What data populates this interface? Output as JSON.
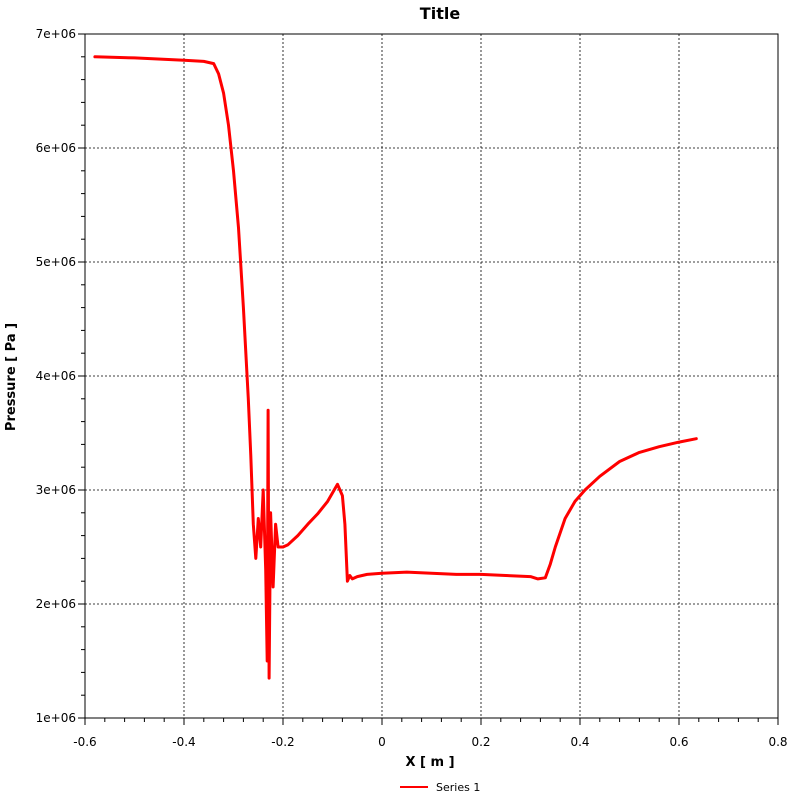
{
  "chart_data": {
    "type": "line",
    "title": "Title",
    "xlabel": "X [ m ]",
    "ylabel": "Pressure [ Pa ]",
    "xlim": [
      -0.6,
      0.8
    ],
    "ylim": [
      1000000,
      7000000
    ],
    "x_ticks": [
      -0.6,
      -0.4,
      -0.2,
      0,
      0.2,
      0.4,
      0.6,
      0.8
    ],
    "x_tick_labels": [
      "-0.6",
      "-0.4",
      "-0.2",
      "0",
      "0.2",
      "0.4",
      "0.6",
      "0.8"
    ],
    "y_ticks": [
      1000000,
      2000000,
      3000000,
      4000000,
      5000000,
      6000000,
      7000000
    ],
    "y_tick_labels": [
      "1e+06",
      "2e+06",
      "3e+06",
      "4e+06",
      "5e+06",
      "6e+06",
      "7e+06"
    ],
    "grid": true,
    "legend_position": "bottom-center",
    "series": [
      {
        "name": "Series 1",
        "color": "#ff0000",
        "x": [
          -0.58,
          -0.5,
          -0.4,
          -0.36,
          -0.34,
          -0.33,
          -0.32,
          -0.31,
          -0.3,
          -0.29,
          -0.28,
          -0.27,
          -0.265,
          -0.26,
          -0.255,
          -0.25,
          -0.245,
          -0.24,
          -0.235,
          -0.232,
          -0.23,
          -0.228,
          -0.225,
          -0.22,
          -0.215,
          -0.21,
          -0.2,
          -0.19,
          -0.17,
          -0.15,
          -0.13,
          -0.11,
          -0.09,
          -0.08,
          -0.075,
          -0.07,
          -0.065,
          -0.06,
          -0.05,
          -0.03,
          0.0,
          0.05,
          0.1,
          0.15,
          0.2,
          0.25,
          0.3,
          0.315,
          0.33,
          0.34,
          0.35,
          0.37,
          0.39,
          0.41,
          0.44,
          0.48,
          0.52,
          0.56,
          0.6,
          0.635
        ],
        "y": [
          6800000,
          6790000,
          6770000,
          6760000,
          6740000,
          6650000,
          6480000,
          6200000,
          5800000,
          5300000,
          4600000,
          3800000,
          3300000,
          2700000,
          2400000,
          2750000,
          2500000,
          3000000,
          2300000,
          1500000,
          3700000,
          1350000,
          2800000,
          2150000,
          2700000,
          2500000,
          2500000,
          2520000,
          2600000,
          2700000,
          2790000,
          2900000,
          3050000,
          2950000,
          2700000,
          2200000,
          2250000,
          2220000,
          2240000,
          2260000,
          2270000,
          2280000,
          2270000,
          2260000,
          2260000,
          2250000,
          2240000,
          2220000,
          2230000,
          2350000,
          2500000,
          2750000,
          2900000,
          3000000,
          3120000,
          3250000,
          3330000,
          3380000,
          3420000,
          3450000
        ]
      }
    ]
  }
}
